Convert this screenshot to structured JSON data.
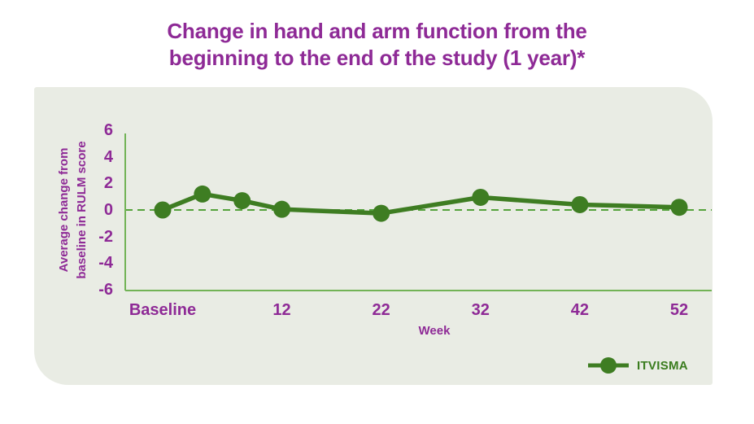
{
  "title": {
    "lines": [
      "Change in hand and arm function from the",
      "beginning to the end of the study (1 year)*"
    ]
  },
  "chart_data": {
    "type": "line",
    "title": "Change in hand and arm function from the beginning to the end of the study (1 year)*",
    "xlabel": "Week",
    "ylabel": "Average change from baseline in RULM score",
    "ylabel_lines": [
      "Average change from",
      "baseline in RULM score"
    ],
    "ylim": [
      -6,
      6
    ],
    "y_ticks": [
      6,
      4,
      2,
      0,
      -2,
      -4,
      -6
    ],
    "x_ticks": [
      {
        "label": "Baseline",
        "week": 0
      },
      {
        "label": "12",
        "week": 12
      },
      {
        "label": "22",
        "week": 22
      },
      {
        "label": "32",
        "week": 32
      },
      {
        "label": "42",
        "week": 42
      },
      {
        "label": "52",
        "week": 52
      }
    ],
    "series": [
      {
        "name": "ITVISMA",
        "x_weeks": [
          0,
          4,
          8,
          12,
          22,
          32,
          42,
          52
        ],
        "values": [
          0,
          1.2,
          0.7,
          0.05,
          -0.25,
          0.95,
          0.4,
          0.2
        ]
      }
    ],
    "reference_line_y": 0,
    "grid": false,
    "legend": {
      "label": "ITVISMA",
      "position": "bottom-right"
    }
  },
  "colors": {
    "title_purple": "#8e2a96",
    "series_green": "#3e7d22",
    "legend_text_green": "#3a7c1e",
    "axis_line_green": "#72b356",
    "dashed_line_green": "#55a33c",
    "panel_bg": "#e9ece4"
  }
}
